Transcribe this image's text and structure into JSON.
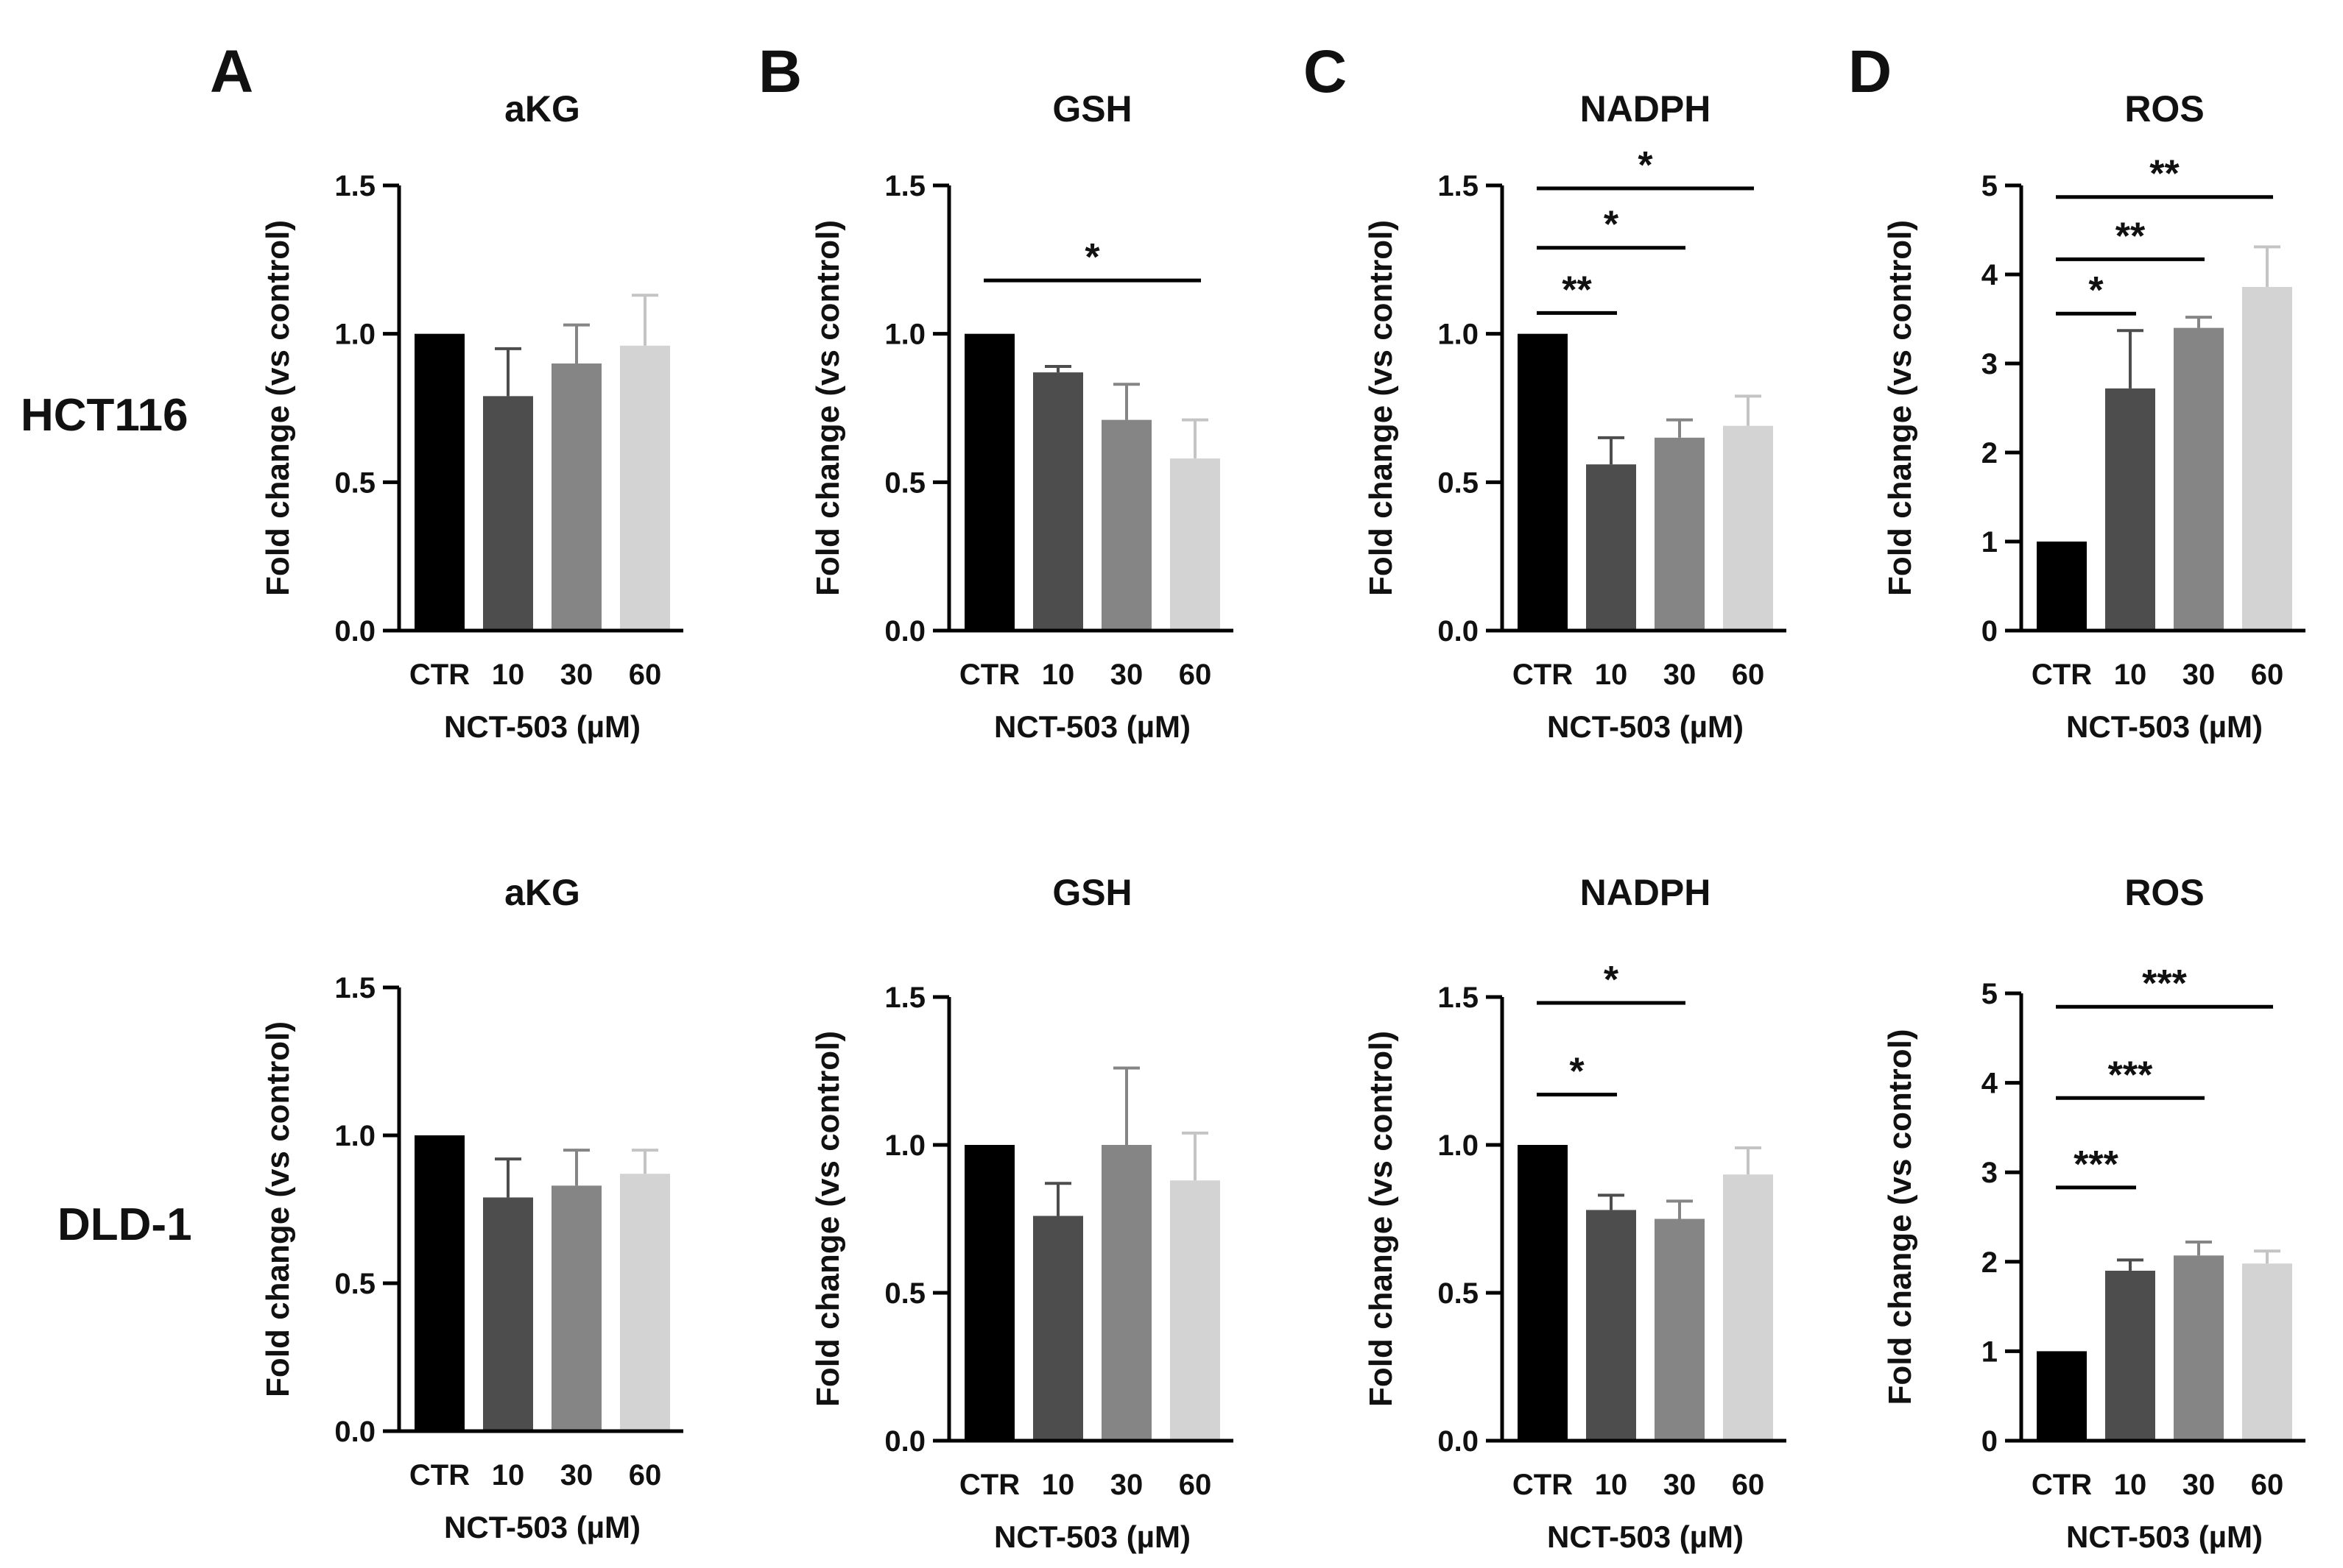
{
  "figure": {
    "panels": [
      "A",
      "B",
      "C",
      "D"
    ],
    "row_labels": [
      "HCT116",
      "DLD-1"
    ]
  },
  "colors": {
    "bars": [
      "#000000",
      "#4d4d4d",
      "#858585",
      "#d3d3d3"
    ],
    "error_bars": [
      "#000000",
      "#4d4d4d",
      "#858585",
      "#c4c4c4"
    ],
    "axis": "#000000"
  },
  "chart_data": [
    {
      "id": "hct116-akg",
      "panel": "A",
      "row": "HCT116",
      "type": "bar",
      "title": "aKG",
      "categories": [
        "CTR",
        "10",
        "30",
        "60"
      ],
      "values": [
        1.0,
        0.79,
        0.9,
        0.96
      ],
      "errors": [
        0,
        0.16,
        0.13,
        0.17
      ],
      "xlabel": "NCT-503 (µM)",
      "ylabel": "Fold change (vs control)",
      "ylim": [
        0,
        1.5
      ],
      "yticks": [
        0.0,
        0.5,
        1.0,
        1.5
      ],
      "tick_decimals": 1,
      "significance": []
    },
    {
      "id": "hct116-gsh",
      "panel": "B",
      "row": "HCT116",
      "type": "bar",
      "title": "GSH",
      "categories": [
        "CTR",
        "10",
        "30",
        "60"
      ],
      "values": [
        1.0,
        0.87,
        0.71,
        0.58
      ],
      "errors": [
        0,
        0.02,
        0.12,
        0.13
      ],
      "xlabel": "NCT-503 (µM)",
      "ylabel": "Fold change (vs control)",
      "ylim": [
        0,
        1.5
      ],
      "yticks": [
        0.0,
        0.5,
        1.0,
        1.5
      ],
      "tick_decimals": 1,
      "significance": [
        {
          "from": 0,
          "to": 3,
          "y": 1.18,
          "label": "*"
        }
      ]
    },
    {
      "id": "hct116-nadph",
      "panel": "C",
      "row": "HCT116",
      "type": "bar",
      "title": "NADPH",
      "categories": [
        "CTR",
        "10",
        "30",
        "60"
      ],
      "values": [
        1.0,
        0.56,
        0.65,
        0.69
      ],
      "errors": [
        0,
        0.09,
        0.06,
        0.1
      ],
      "xlabel": "NCT-503 (µM)",
      "ylabel": "Fold change (vs control)",
      "ylim": [
        0,
        1.5
      ],
      "yticks": [
        0.0,
        0.5,
        1.0,
        1.5
      ],
      "tick_decimals": 1,
      "significance": [
        {
          "from": 0,
          "to": 1,
          "y": 1.07,
          "label": "**"
        },
        {
          "from": 0,
          "to": 2,
          "y": 1.29,
          "label": "*"
        },
        {
          "from": 0,
          "to": 3,
          "y": 1.49,
          "label": "*"
        }
      ]
    },
    {
      "id": "hct116-ros",
      "panel": "D",
      "row": "HCT116",
      "type": "bar",
      "title": "ROS",
      "categories": [
        "CTR",
        "10",
        "30",
        "60"
      ],
      "values": [
        1.0,
        2.72,
        3.4,
        3.86
      ],
      "errors": [
        0,
        0.65,
        0.12,
        0.45
      ],
      "xlabel": "NCT-503 (µM)",
      "ylabel": "Fold change (vs control)",
      "ylim": [
        0,
        5
      ],
      "yticks": [
        0,
        1,
        2,
        3,
        4,
        5
      ],
      "tick_decimals": 0,
      "significance": [
        {
          "from": 0,
          "to": 1,
          "y": 3.56,
          "label": "*"
        },
        {
          "from": 0,
          "to": 2,
          "y": 4.17,
          "label": "**"
        },
        {
          "from": 0,
          "to": 3,
          "y": 4.87,
          "label": "**"
        }
      ]
    },
    {
      "id": "dld1-akg",
      "panel": "A",
      "row": "DLD-1",
      "type": "bar",
      "title": "aKG",
      "categories": [
        "CTR",
        "10",
        "30",
        "60"
      ],
      "values": [
        1.0,
        0.79,
        0.83,
        0.87
      ],
      "errors": [
        0,
        0.13,
        0.12,
        0.08
      ],
      "xlabel": "NCT-503 (µM)",
      "ylabel": "Fold change (vs control)",
      "ylim": [
        0,
        1.5
      ],
      "yticks": [
        0.0,
        0.5,
        1.0,
        1.5
      ],
      "tick_decimals": 1,
      "significance": []
    },
    {
      "id": "dld1-gsh",
      "panel": "B",
      "row": "DLD-1",
      "type": "bar",
      "title": "GSH",
      "categories": [
        "CTR",
        "10",
        "30",
        "60"
      ],
      "values": [
        1.0,
        0.76,
        1.0,
        0.88
      ],
      "errors": [
        0,
        0.11,
        0.26,
        0.16
      ],
      "xlabel": "NCT-503 (µM)",
      "ylabel": "Fold change (vs control)",
      "ylim": [
        0,
        1.5
      ],
      "yticks": [
        0.0,
        0.5,
        1.0,
        1.5
      ],
      "tick_decimals": 1,
      "significance": []
    },
    {
      "id": "dld1-nadph",
      "panel": "C",
      "row": "DLD-1",
      "type": "bar",
      "title": "NADPH",
      "categories": [
        "CTR",
        "10",
        "30",
        "60"
      ],
      "values": [
        1.0,
        0.78,
        0.75,
        0.9
      ],
      "errors": [
        0,
        0.05,
        0.06,
        0.09
      ],
      "xlabel": "NCT-503 (µM)",
      "ylabel": "Fold change (vs control)",
      "ylim": [
        0,
        1.5
      ],
      "yticks": [
        0.0,
        0.5,
        1.0,
        1.5
      ],
      "tick_decimals": 1,
      "significance": [
        {
          "from": 0,
          "to": 1,
          "y": 1.17,
          "label": "*"
        },
        {
          "from": 0,
          "to": 2,
          "y": 1.48,
          "label": "*"
        }
      ]
    },
    {
      "id": "dld1-ros",
      "panel": "D",
      "row": "DLD-1",
      "type": "bar",
      "title": "ROS",
      "categories": [
        "CTR",
        "10",
        "30",
        "60"
      ],
      "values": [
        1.0,
        1.9,
        2.07,
        1.98
      ],
      "errors": [
        0,
        0.12,
        0.15,
        0.14
      ],
      "xlabel": "NCT-503 (µM)",
      "ylabel": "Fold change (vs control)",
      "ylim": [
        0,
        5
      ],
      "yticks": [
        0,
        1,
        2,
        3,
        4,
        5
      ],
      "tick_decimals": 0,
      "significance": [
        {
          "from": 0,
          "to": 1,
          "y": 2.83,
          "label": "***"
        },
        {
          "from": 0,
          "to": 2,
          "y": 3.83,
          "label": "***"
        },
        {
          "from": 0,
          "to": 3,
          "y": 4.85,
          "label": "***"
        }
      ]
    }
  ]
}
